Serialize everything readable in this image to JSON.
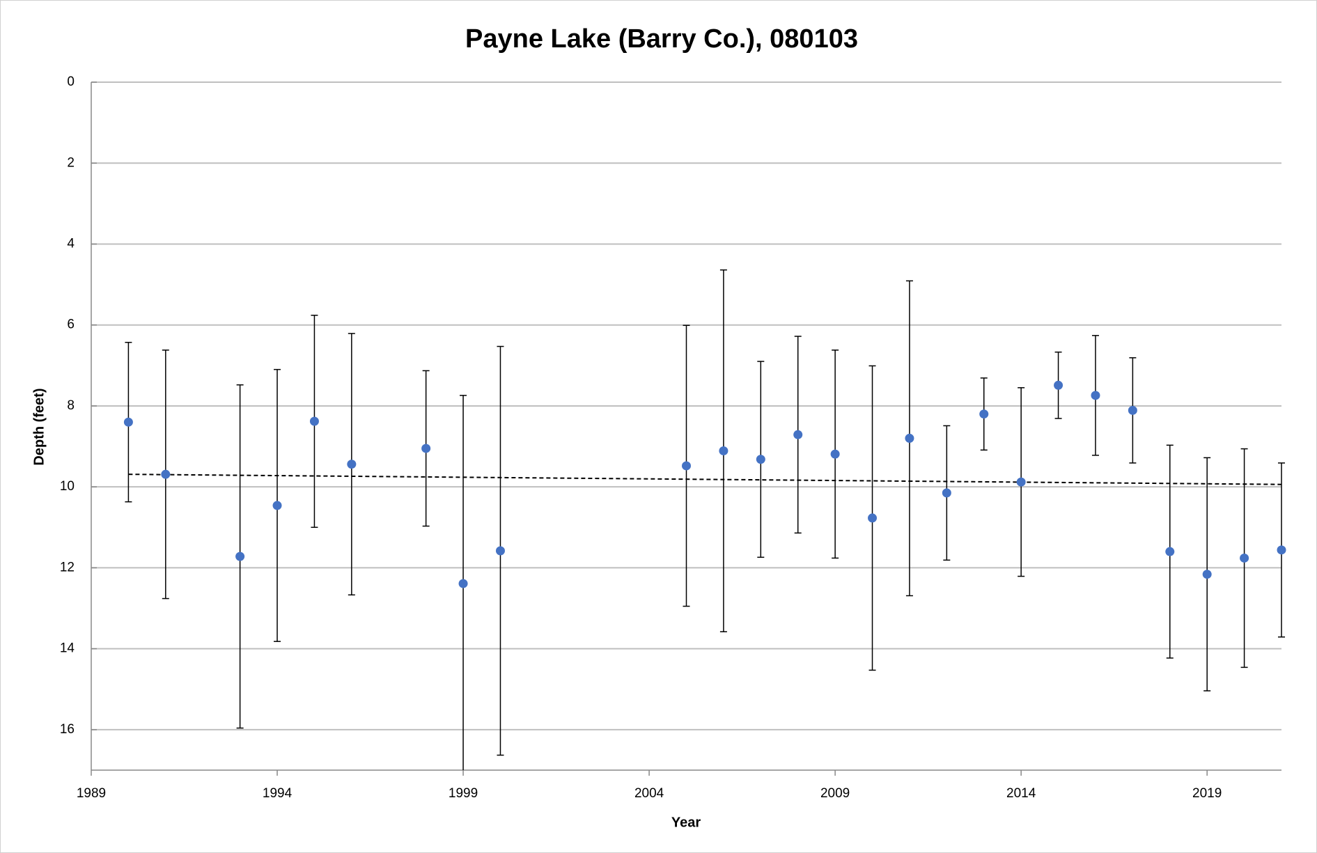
{
  "chart_data": {
    "type": "scatter",
    "title": "Payne Lake (Barry Co.), 080103",
    "x_label": "Year",
    "y_label": "Depth (feet)",
    "x": [
      1990,
      1991,
      1993,
      1994,
      1995,
      1996,
      1998,
      1999,
      2000,
      2005,
      2006,
      2007,
      2008,
      2009,
      2010,
      2011,
      2012,
      2013,
      2014,
      2015,
      2016,
      2017,
      2018,
      2019,
      2020,
      2021
    ],
    "series": [
      {
        "color": "#4472c4",
        "values": [
          8.4,
          9.69,
          11.72,
          10.46,
          8.38,
          9.44,
          9.05,
          12.39,
          11.58,
          9.48,
          9.11,
          9.32,
          8.71,
          9.19,
          10.77,
          8.8,
          10.15,
          8.2,
          9.88,
          7.49,
          7.74,
          8.11,
          11.6,
          12.16,
          11.76,
          11.56
        ],
        "errors": [
          1.97,
          3.07,
          4.24,
          3.36,
          2.62,
          3.23,
          1.92,
          4.65,
          5.05,
          3.47,
          4.47,
          2.42,
          2.43,
          2.57,
          3.76,
          3.89,
          1.66,
          0.89,
          2.33,
          0.82,
          1.48,
          1.3,
          2.63,
          2.88,
          2.7,
          2.15
        ]
      }
    ],
    "trendline": {
      "x": [
        1990,
        2021
      ],
      "values": [
        9.69,
        9.94
      ],
      "color": "#000000"
    },
    "xlim": [
      1989,
      2021
    ],
    "xticks": [
      1989,
      1994,
      1999,
      2004,
      2009,
      2014,
      2019
    ],
    "ylim": [
      0,
      17
    ],
    "yticks": [
      0,
      2,
      4,
      6,
      8,
      10,
      12,
      14,
      16
    ],
    "y_inverted": true,
    "grid": true
  }
}
